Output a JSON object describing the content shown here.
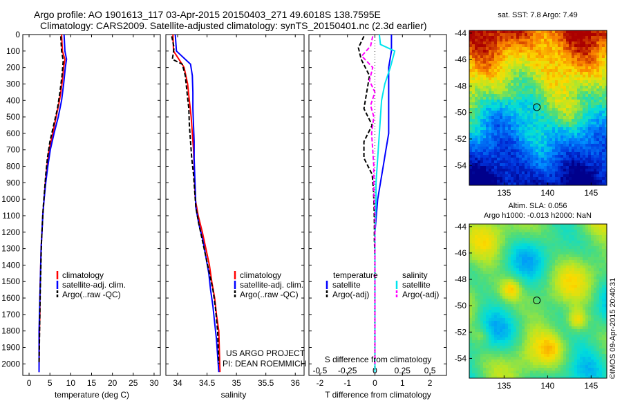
{
  "header": {
    "line1": "Argo profile: AO 1901613_117 03-Apr-2015 20150403_271 49.6018S 138.7595E",
    "line2": "Climatology: CARS2009. Satellite-adjusted climatology: synTS_20150401.nc (2.3d earlier)"
  },
  "colors": {
    "climatology": "#ff0000",
    "satellite": "#0000ff",
    "argo": "#000000",
    "salinity_sat": "#00e5ee",
    "salinity_argo": "#ff00ff"
  },
  "chart_data": [
    {
      "type": "line",
      "xlabel": "temperature (deg C)",
      "ylabel": "",
      "xlim": [
        -1.5,
        31.5
      ],
      "ylim": [
        2070,
        0
      ],
      "xticks": [
        "0",
        "5",
        "10",
        "15",
        "20",
        "25",
        "30"
      ],
      "yticks": [
        "0",
        "100",
        "200",
        "300",
        "400",
        "500",
        "600",
        "700",
        "800",
        "900",
        "1000",
        "1100",
        "1200",
        "1300",
        "1400",
        "1500",
        "1600",
        "1700",
        "1800",
        "1900",
        "2000"
      ],
      "legend": [
        "climatology",
        "satellite-adj. clim.",
        "Argo(..raw -QC)"
      ],
      "legend_position": "bottom-center",
      "series": [
        {
          "name": "climatology",
          "x": [
            7.8,
            8.0,
            8.6,
            8.3,
            7.9,
            7.3,
            6.5,
            5.7,
            4.8,
            4.3,
            3.9,
            3.6,
            3.3,
            3.1,
            2.9,
            2.8,
            2.7,
            2.6,
            2.6,
            2.5,
            2.4
          ],
          "y": [
            0,
            100,
            150,
            200,
            300,
            400,
            500,
            600,
            700,
            800,
            900,
            1000,
            1100,
            1200,
            1300,
            1400,
            1500,
            1600,
            1700,
            1800,
            2050
          ]
        },
        {
          "name": "satellite-adj. clim.",
          "x": [
            8.4,
            8.6,
            9.0,
            8.7,
            8.3,
            7.8,
            7.0,
            6.0,
            5.1,
            4.5,
            4.0,
            3.6,
            3.3,
            3.1,
            2.9,
            2.8,
            2.7,
            2.6,
            2.5,
            2.4,
            2.4
          ],
          "y": [
            0,
            100,
            150,
            200,
            300,
            400,
            500,
            600,
            700,
            800,
            900,
            1000,
            1100,
            1200,
            1300,
            1400,
            1500,
            1600,
            1700,
            1800,
            2050
          ]
        },
        {
          "name": "Argo(..raw -QC)",
          "x": [
            7.6,
            7.8,
            8.2,
            7.9,
            7.4,
            6.8,
            5.9,
            5.0,
            4.4,
            4.0,
            3.7,
            3.4,
            3.2,
            3.0,
            2.9,
            2.8,
            2.7,
            2.6,
            2.5,
            2.4
          ],
          "y": [
            10,
            100,
            160,
            250,
            350,
            450,
            550,
            650,
            750,
            850,
            950,
            1050,
            1150,
            1250,
            1350,
            1450,
            1550,
            1700,
            1850,
            2000
          ]
        }
      ]
    },
    {
      "type": "line",
      "xlabel": "salinity",
      "ylabel": "",
      "xlim": [
        33.8,
        36.15
      ],
      "ylim": [
        2070,
        0
      ],
      "xticks": [
        "34",
        "34.5",
        "35",
        "35.5",
        "36"
      ],
      "legend": [
        "climatology",
        "satellite-adj. clim.",
        "Argo(..raw -QC)"
      ],
      "legend_position": "bottom-center",
      "annotations": [
        "US ARGO PROJECT",
        "PI: DEAN ROEMMICH"
      ],
      "series": [
        {
          "name": "climatology",
          "x": [
            33.92,
            33.93,
            34.04,
            34.11,
            34.17,
            34.2,
            34.23,
            34.25,
            34.27,
            34.28,
            34.29,
            34.3,
            34.35,
            34.42,
            34.48,
            34.54,
            34.58,
            34.63,
            34.66,
            34.7,
            34.72
          ],
          "y": [
            0,
            100,
            160,
            200,
            300,
            400,
            500,
            600,
            700,
            800,
            900,
            1000,
            1100,
            1200,
            1300,
            1400,
            1500,
            1600,
            1700,
            1800,
            2050
          ]
        },
        {
          "name": "satellite-adj. clim.",
          "x": [
            33.96,
            33.98,
            34.22,
            34.25,
            34.26,
            34.26,
            34.27,
            34.28,
            34.28,
            34.29,
            34.3,
            34.31,
            34.36,
            34.43,
            34.48,
            34.53,
            34.56,
            34.6,
            34.63,
            34.66,
            34.7
          ],
          "y": [
            0,
            100,
            180,
            250,
            350,
            450,
            550,
            650,
            750,
            850,
            950,
            1050,
            1150,
            1250,
            1350,
            1450,
            1550,
            1650,
            1750,
            1850,
            2050
          ]
        },
        {
          "name": "Argo(..raw -QC)",
          "x": [
            33.9,
            33.94,
            33.91,
            34.08,
            34.13,
            34.16,
            34.19,
            34.2,
            34.22,
            34.24,
            34.27,
            34.29,
            34.31,
            34.36,
            34.42,
            34.48,
            34.54,
            34.6,
            34.64,
            34.68,
            34.7
          ],
          "y": [
            10,
            80,
            150,
            180,
            250,
            350,
            450,
            550,
            650,
            750,
            850,
            950,
            1050,
            1150,
            1250,
            1350,
            1450,
            1550,
            1650,
            1800,
            2000
          ]
        }
      ]
    },
    {
      "type": "line",
      "xlabel": "T difference from climatology",
      "xlabel2": "S difference from climatology",
      "ylabel": "",
      "xlim": [
        -2.4,
        2.6
      ],
      "xlim_salinity": [
        -0.6,
        0.65
      ],
      "ylim": [
        2070,
        0
      ],
      "xticks": [
        "-2",
        "-1",
        "0",
        "1",
        "2"
      ],
      "xticks_salinity": [
        "-0.5",
        "-0.25",
        "0",
        "0.25",
        "0.5"
      ],
      "legend": [
        "temperature",
        "satellite",
        "Argo(-adj)",
        "salinity",
        "satellite",
        "Argo(-adj)"
      ],
      "legend_position": "bottom-center",
      "series": [
        {
          "name": "temperature satellite",
          "x": [
            0.6,
            0.6,
            0.5,
            0.5,
            0.5,
            0.5,
            0.5,
            0.4,
            0.3,
            0.2,
            0.1,
            0.05,
            0,
            0,
            0,
            0,
            0,
            0,
            0
          ],
          "y": [
            0,
            100,
            200,
            300,
            400,
            500,
            600,
            700,
            800,
            900,
            1000,
            1100,
            1200,
            1300,
            1400,
            1500,
            1600,
            1800,
            2050
          ]
        },
        {
          "name": "temperature Argo(-adj)",
          "x": [
            -0.4,
            -0.6,
            -0.5,
            -0.2,
            -0.3,
            -0.4,
            -0.1,
            -0.4,
            -0.4,
            -0.1,
            -0.05,
            -0.03,
            -0.02,
            -0.02,
            0,
            0,
            0,
            0
          ],
          "y": [
            10,
            80,
            150,
            250,
            350,
            450,
            550,
            650,
            750,
            850,
            950,
            1050,
            1150,
            1250,
            1350,
            1500,
            1700,
            2000
          ]
        },
        {
          "name": "salinity satellite",
          "x": [
            0.04,
            0.05,
            0.18,
            0.14,
            0.09,
            0.06,
            0.05,
            0.04,
            0.03,
            0.02,
            0.01,
            0.01,
            0,
            0,
            0,
            0,
            0
          ],
          "y": [
            0,
            60,
            100,
            200,
            300,
            400,
            500,
            600,
            700,
            800,
            900,
            1000,
            1200,
            1400,
            1600,
            1800,
            2050
          ]
        },
        {
          "name": "salinity Argo(-adj)",
          "x": [
            -0.02,
            -0.04,
            -0.12,
            -0.02,
            -0.05,
            0,
            -0.04,
            -0.01,
            -0.03,
            -0.02,
            -0.01,
            -0.01,
            0,
            0,
            0,
            0
          ],
          "y": [
            10,
            70,
            130,
            200,
            280,
            350,
            430,
            500,
            600,
            700,
            800,
            950,
            1100,
            1300,
            1600,
            2000
          ]
        }
      ]
    },
    {
      "type": "heatmap",
      "title": "sat. SST: 7.8  Argo: 7.49",
      "xticks": [
        "135",
        "140",
        "145"
      ],
      "yticks": [
        "-44",
        "-46",
        "-48",
        "-50",
        "-52",
        "-54"
      ],
      "xlim": [
        131,
        146.8
      ],
      "ylim": [
        -55.5,
        -43.8
      ],
      "marker": {
        "lon": 138.76,
        "lat": -49.6
      }
    },
    {
      "type": "heatmap",
      "title": "Altim. SLA: 0.056",
      "subtitle": "Argo h1000: -0.013 h2000: NaN",
      "xticks": [
        "135",
        "140",
        "145"
      ],
      "yticks": [
        "-44",
        "-46",
        "-48",
        "-50",
        "-52",
        "-54"
      ],
      "xlim": [
        131,
        146.8
      ],
      "ylim": [
        -55.5,
        -43.8
      ],
      "marker": {
        "lon": 138.76,
        "lat": -49.6
      },
      "side_text": "©IMOS 09-Apr-2015 20:40:31"
    }
  ]
}
